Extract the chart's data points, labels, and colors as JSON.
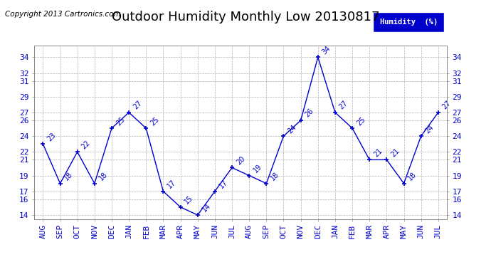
{
  "title": "Outdoor Humidity Monthly Low 20130817",
  "copyright": "Copyright 2013 Cartronics.com",
  "legend_label": "Humidity  (%)",
  "months": [
    "AUG",
    "SEP",
    "OCT",
    "NOV",
    "DEC",
    "JAN",
    "FEB",
    "MAR",
    "APR",
    "MAY",
    "JUN",
    "JUL",
    "AUG",
    "SEP",
    "OCT",
    "NOV",
    "DEC",
    "JAN",
    "FEB",
    "MAR",
    "APR",
    "MAY",
    "JUN",
    "JUL"
  ],
  "values": [
    23,
    18,
    22,
    18,
    25,
    27,
    25,
    17,
    15,
    14,
    17,
    20,
    19,
    18,
    24,
    26,
    34,
    27,
    25,
    21,
    21,
    18,
    24,
    27
  ],
  "line_color": "#0000cc",
  "marker_color": "#0000cc",
  "grid_color": "#b0b0b0",
  "bg_color": "#ffffff",
  "title_color": "#000000",
  "copyright_color": "#000000",
  "legend_bg": "#0000cc",
  "legend_fg": "#ffffff",
  "ylim_min": 13.5,
  "ylim_max": 35.5,
  "yticks": [
    14,
    16,
    17,
    19,
    21,
    22,
    24,
    26,
    27,
    29,
    31,
    32,
    34
  ],
  "title_fontsize": 13,
  "label_fontsize": 8,
  "annotation_fontsize": 7,
  "copyright_fontsize": 7.5
}
